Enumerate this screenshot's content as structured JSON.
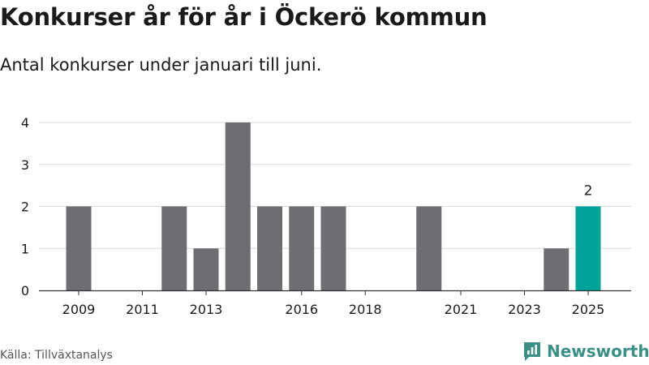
{
  "header": {
    "title": "Konkurser år för år i Öckerö kommun",
    "subtitle": "Antal konkurser under januari till juni."
  },
  "footer": {
    "source": "Källa: Tillväxtanalys",
    "brand": "Newsworthy"
  },
  "colors": {
    "bar": "#6e6d72",
    "highlight": "#00a39a",
    "grid": "#d9d9d9",
    "brand": "#3a8f87"
  },
  "chart_data": {
    "type": "bar",
    "categories": [
      "2009",
      "2010",
      "2011",
      "2012",
      "2013",
      "2014",
      "2015",
      "2016",
      "2017",
      "2018",
      "2019",
      "2020",
      "2021",
      "2022",
      "2023",
      "2024",
      "2025"
    ],
    "values": [
      2,
      0,
      0,
      2,
      1,
      4,
      2,
      2,
      2,
      0,
      0,
      2,
      0,
      0,
      0,
      1,
      2
    ],
    "highlight_index": 16,
    "x_tick_labels": [
      "2009",
      "2011",
      "2013",
      "2016",
      "2018",
      "2021",
      "2023",
      "2025"
    ],
    "y_ticks": [
      0,
      1,
      2,
      3,
      4
    ],
    "ylim": [
      0,
      4
    ],
    "grid": true,
    "data_labels": [
      {
        "category": "2025",
        "text": "2"
      }
    ]
  }
}
